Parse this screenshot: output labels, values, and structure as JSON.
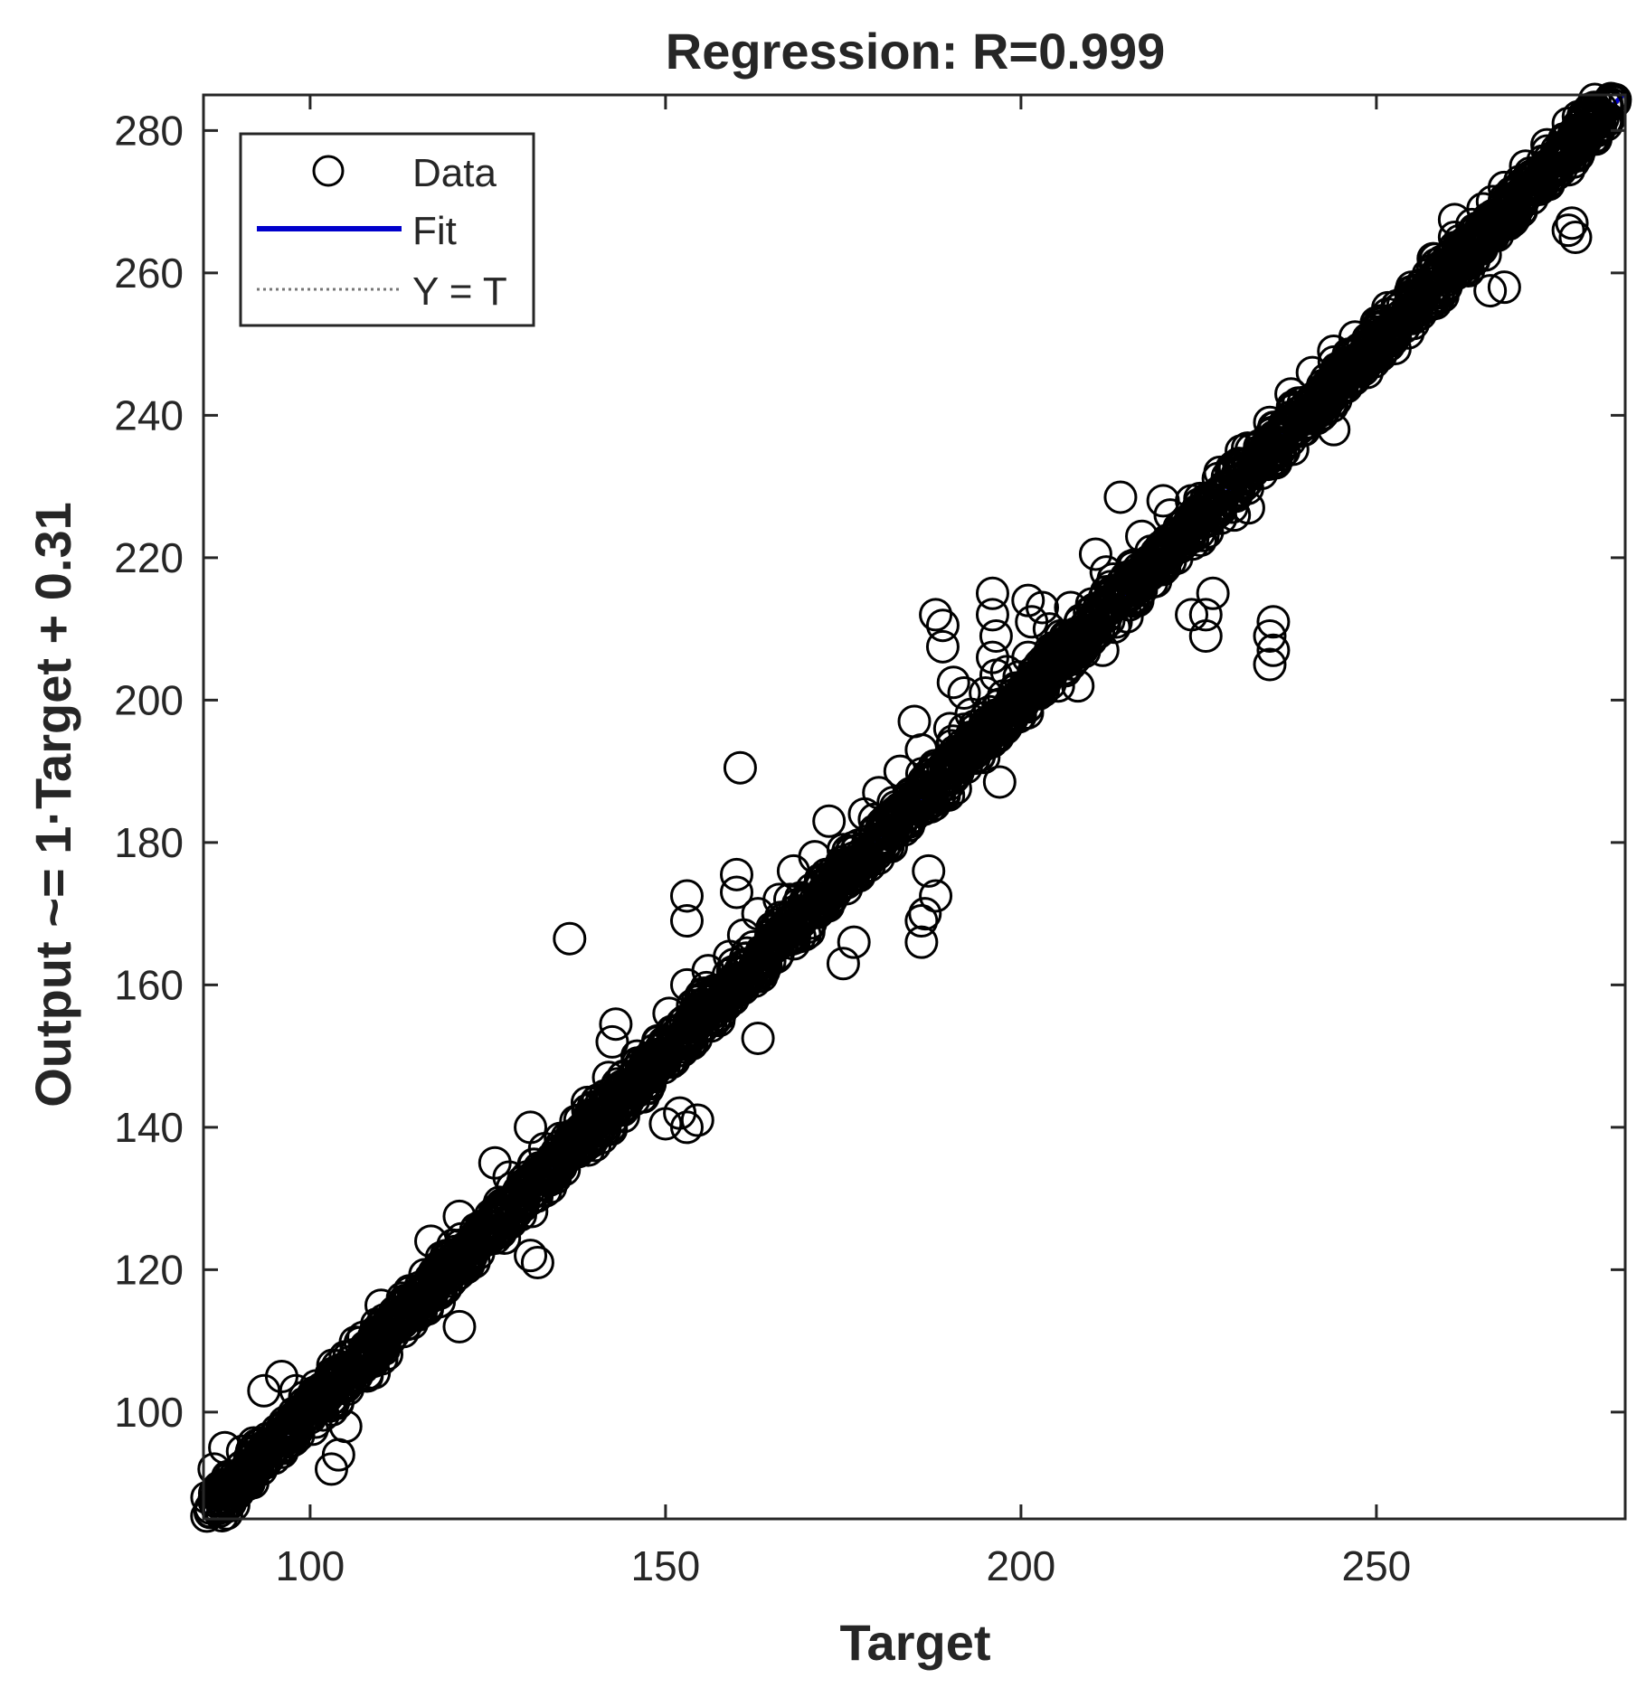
{
  "chart_data": {
    "type": "scatter",
    "title": "Regression: R=0.999",
    "xlabel": "Target",
    "ylabel": "Output ~= 1·Target + 0.31",
    "xlim": [
      85,
      285
    ],
    "ylim": [
      85,
      285
    ],
    "xticks": [
      100,
      150,
      200,
      250
    ],
    "yticks": [
      100,
      120,
      140,
      160,
      180,
      200,
      220,
      240,
      260,
      280
    ],
    "grid": false,
    "legend_position": "top-left",
    "legend": {
      "data_label": "Data",
      "fit_label": "Fit",
      "yt_label": "Y = T"
    },
    "fit": {
      "slope": 1,
      "intercept": 0.31,
      "color": "#0000cc"
    },
    "identity_line": {
      "slope": 1,
      "intercept": 0
    },
    "marker_color": "#000000",
    "series": [
      {
        "values": [
          [
            136.5,
            166.5
          ],
          [
            160.5,
            190.5
          ],
          [
            185,
            197
          ],
          [
            154.5,
            141
          ],
          [
            152,
            142
          ],
          [
            153,
            140
          ],
          [
            157.5,
            155
          ],
          [
            155,
            158.5
          ],
          [
            143,
            154.5
          ],
          [
            142.5,
            152
          ],
          [
            144,
            147
          ],
          [
            150,
            140.5
          ],
          [
            131,
            122
          ],
          [
            132,
            121
          ],
          [
            121,
            112
          ],
          [
            105,
            98
          ],
          [
            103,
            92
          ],
          [
            104,
            94
          ],
          [
            109,
            105.5
          ],
          [
            188,
            212
          ],
          [
            189,
            210.5
          ],
          [
            189,
            207.5
          ],
          [
            190.5,
            202.5
          ],
          [
            192,
            201
          ],
          [
            196,
            215
          ],
          [
            196,
            212
          ],
          [
            196.5,
            209
          ],
          [
            196,
            206
          ],
          [
            196.5,
            203.5
          ],
          [
            201,
            214
          ],
          [
            201.5,
            211
          ],
          [
            203,
            213
          ],
          [
            187,
            176
          ],
          [
            188,
            172.5
          ],
          [
            186,
            169
          ],
          [
            186,
            166
          ],
          [
            186.5,
            170
          ],
          [
            197,
            188.5
          ],
          [
            235.5,
            211
          ],
          [
            235,
            209
          ],
          [
            235.5,
            207
          ],
          [
            235,
            205
          ],
          [
            226,
            209
          ],
          [
            226,
            212
          ],
          [
            227,
            215
          ],
          [
            224,
            212
          ],
          [
            244,
            238
          ],
          [
            253.5,
            254
          ],
          [
            258,
            256
          ],
          [
            266,
            257.5
          ],
          [
            268,
            258
          ],
          [
            263,
            262
          ],
          [
            277,
            266
          ],
          [
            278,
            265
          ],
          [
            277.5,
            267
          ],
          [
            261,
            267.5
          ],
          [
            263,
            264
          ],
          [
            160,
            175.5
          ],
          [
            160,
            173
          ],
          [
            153,
            172.5
          ],
          [
            153,
            169
          ],
          [
            165,
            168
          ],
          [
            167.5,
            172
          ],
          [
            163,
            152.5
          ],
          [
            175,
            163
          ],
          [
            176.5,
            166
          ],
          [
            220,
            228
          ],
          [
            216,
            219
          ],
          [
            212,
            218
          ],
          [
            208,
            202
          ],
          [
            211.5,
            207
          ],
          [
            214,
            228.5
          ],
          [
            230,
            226
          ],
          [
            232,
            227
          ],
          [
            210.5,
            220.5
          ],
          [
            85.5,
            88
          ],
          [
            86,
            86.5
          ],
          [
            87,
            89
          ],
          [
            86.5,
            92
          ],
          [
            88,
            95
          ],
          [
            90.5,
            94.5
          ],
          [
            92,
            92
          ],
          [
            93.5,
            103
          ],
          [
            96,
            105
          ],
          [
            98,
            103
          ],
          [
            110,
            115
          ],
          [
            113,
            116
          ],
          [
            117,
            124
          ],
          [
            121,
            127.5
          ],
          [
            126,
            135
          ],
          [
            128,
            133
          ],
          [
            131,
            140
          ],
          [
            133,
            137
          ],
          [
            139,
            143.5
          ],
          [
            142,
            147
          ],
          [
            146,
            150
          ],
          [
            149,
            152
          ],
          [
            150.5,
            156
          ],
          [
            153,
            160
          ],
          [
            156,
            162
          ],
          [
            159,
            164
          ],
          [
            161,
            167
          ],
          [
            163,
            170
          ],
          [
            166,
            172
          ],
          [
            168,
            176
          ],
          [
            171,
            178
          ],
          [
            173,
            183
          ],
          [
            175,
            179
          ],
          [
            178,
            184
          ],
          [
            180,
            187
          ],
          [
            183,
            190
          ],
          [
            186,
            193
          ],
          [
            190,
            196
          ],
          [
            193,
            198
          ],
          [
            195,
            201
          ],
          [
            198,
            204
          ],
          [
            201,
            206
          ],
          [
            204,
            210
          ],
          [
            207,
            213
          ],
          [
            213,
            217
          ],
          [
            217,
            223
          ],
          [
            221,
            226
          ],
          [
            224,
            228
          ],
          [
            228,
            232
          ],
          [
            231,
            235
          ],
          [
            235,
            239
          ],
          [
            238,
            243
          ],
          [
            241,
            246
          ],
          [
            244,
            249
          ],
          [
            247,
            251
          ],
          [
            250,
            253
          ],
          [
            255,
            258
          ],
          [
            258,
            262
          ],
          [
            261,
            265
          ],
          [
            265,
            269
          ],
          [
            268,
            272
          ],
          [
            271,
            275
          ],
          [
            274,
            278
          ],
          [
            277,
            281
          ],
          [
            280,
            283
          ],
          [
            283,
            284.5
          ]
        ]
      }
    ]
  }
}
